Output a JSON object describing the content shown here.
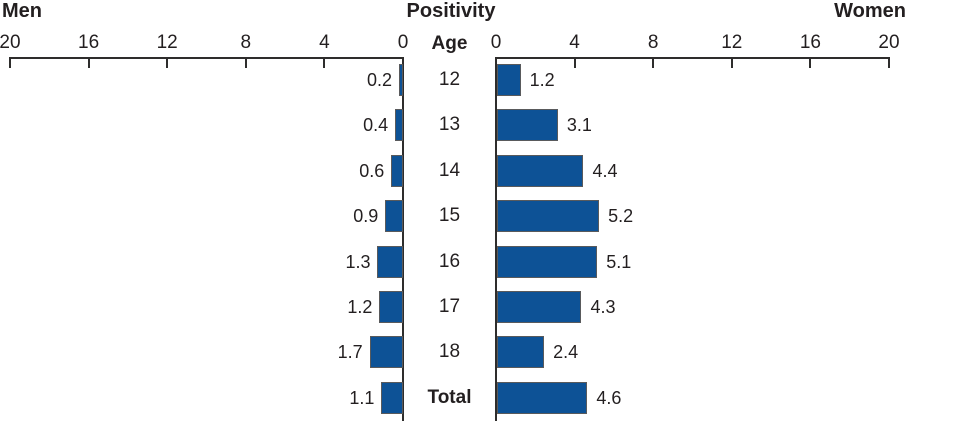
{
  "chart_data": {
    "type": "bar",
    "subtype": "population-pyramid",
    "title": "Positivity",
    "left_title": "Men",
    "right_title": "Women",
    "center_label": "Age",
    "categories": [
      "12",
      "13",
      "14",
      "15",
      "16",
      "17",
      "18",
      "Total"
    ],
    "series": [
      {
        "name": "Men",
        "side": "left",
        "values": [
          0.2,
          0.4,
          0.6,
          0.9,
          1.3,
          1.2,
          1.7,
          1.1
        ]
      },
      {
        "name": "Women",
        "side": "right",
        "values": [
          1.2,
          3.1,
          4.4,
          5.2,
          5.1,
          4.3,
          2.4,
          4.6
        ]
      }
    ],
    "axis_ticks": [
      0,
      4,
      8,
      12,
      16,
      20
    ],
    "xlim": [
      0,
      20
    ],
    "grid": false,
    "legend": "none",
    "bar_color": "#0d5296",
    "bar_border_color": "#595a5c",
    "axis_color": "#2e2d2c",
    "text_color": "#231f20",
    "background_color": "#ffffff"
  }
}
